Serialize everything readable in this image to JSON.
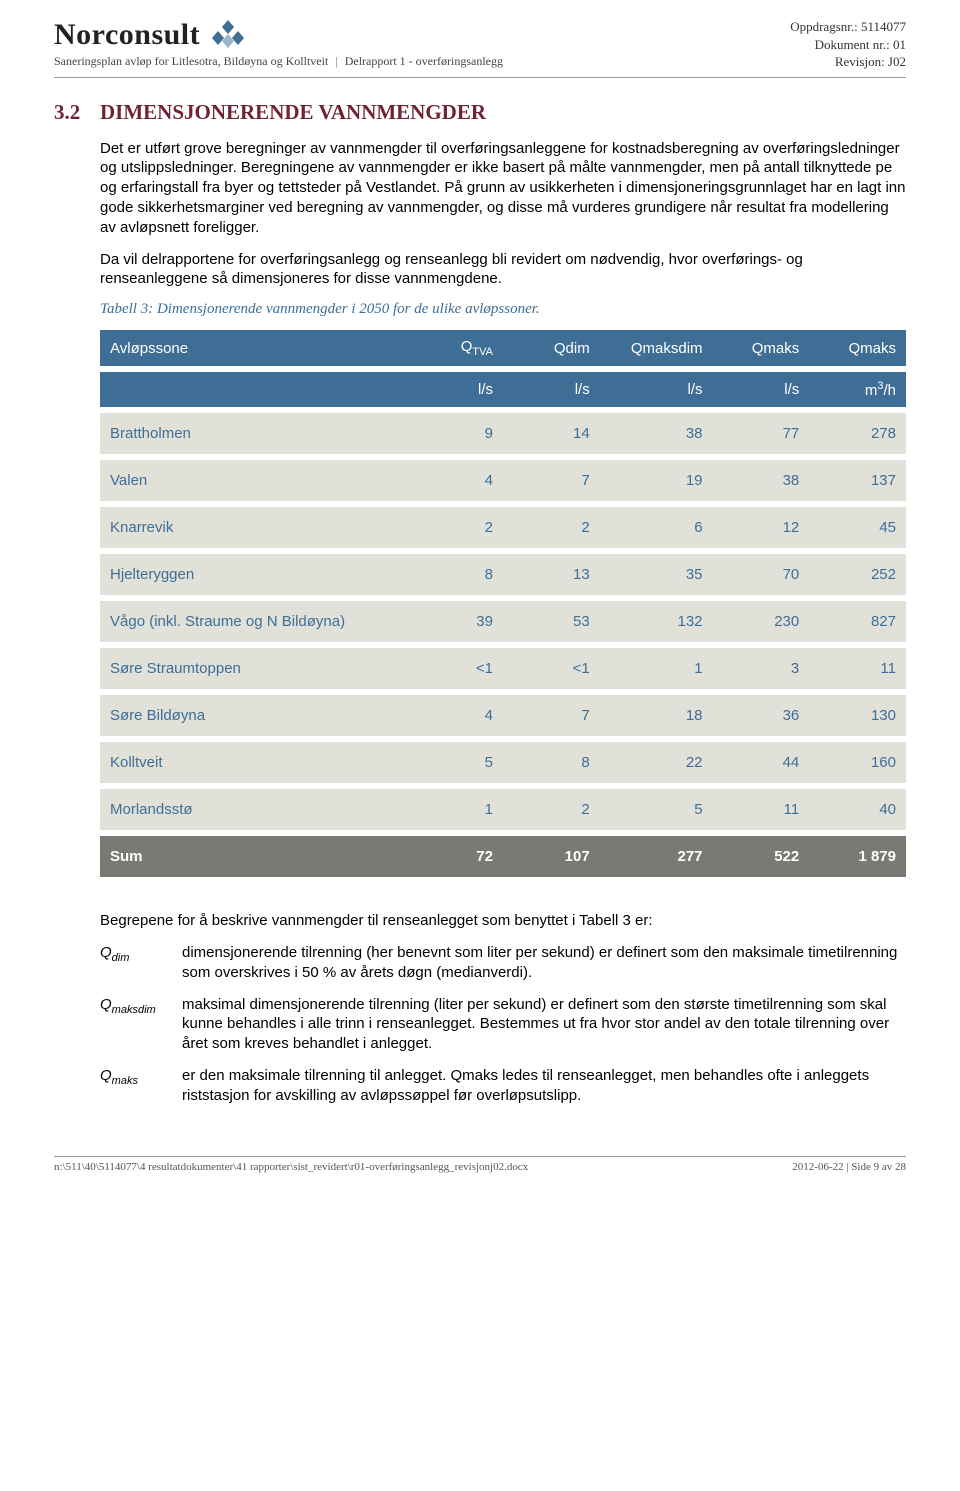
{
  "header": {
    "logo_text": "Norconsult",
    "logo_colors": {
      "diamond": "#3e6e96"
    },
    "subtitle_left": "Saneringsplan avløp for Litlesotra, Bildøyna og Kolltveit",
    "subtitle_right": "Delrapport 1 - overføringsanlegg",
    "right_lines": {
      "oppdrag": "Oppdragsnr.: 5114077",
      "dokument": "Dokument nr.: 01",
      "revisjon": "Revisjon: J02"
    }
  },
  "section": {
    "number": "3.2",
    "title": "DIMENSJONERENDE VANNMENGDER",
    "para1": "Det er utført grove beregninger av vannmengder til overføringsanleggene for kostnadsberegning av overføringsledninger og utslippsledninger. Beregningene av vannmengder er ikke basert på målte vannmengder, men på antall tilknyttede pe og erfaringstall fra byer og tettsteder på Vestlandet. På grunn av usikkerheten i dimensjoneringsgrunnlaget har en lagt inn gode sikkerhetsmarginer ved beregning av vannmengder, og disse må vurderes grundigere når resultat fra modellering av avløpsnett foreligger.",
    "para2": "Da vil delrapportene for overføringsanlegg og renseanlegg bli revidert om nødvendig, hvor overførings- og renseanleggene så dimensjoneres for disse vannmengdene.",
    "caption": "Tabell 3: Dimensjonerende vannmengder i 2050 for de ulike avløpssoner."
  },
  "table": {
    "col_widths": [
      "38%",
      "12%",
      "12%",
      "14%",
      "12%",
      "12%"
    ],
    "header_top": {
      "c0": "Avløpssone",
      "c1_main": "Q",
      "c1_sub": "TVA",
      "c2": "Qdim",
      "c3": "Qmaksdim",
      "c4": "Qmaks",
      "c5": "Qmaks"
    },
    "header_units": {
      "c1": "l/s",
      "c2": "l/s",
      "c3": "l/s",
      "c4": "l/s",
      "c5_pre": "m",
      "c5_sup": "3",
      "c5_post": "/h"
    },
    "rows": [
      {
        "name": "Brattholmen",
        "v": [
          "9",
          "14",
          "38",
          "77",
          "278"
        ]
      },
      {
        "name": "Valen",
        "v": [
          "4",
          "7",
          "19",
          "38",
          "137"
        ]
      },
      {
        "name": "Knarrevik",
        "v": [
          "2",
          "2",
          "6",
          "12",
          "45"
        ]
      },
      {
        "name": "Hjelteryggen",
        "v": [
          "8",
          "13",
          "35",
          "70",
          "252"
        ]
      },
      {
        "name": "Vågo (inkl. Straume og N Bildøyna)",
        "v": [
          "39",
          "53",
          "132",
          "230",
          "827"
        ]
      },
      {
        "name": "Søre Straumtoppen",
        "v": [
          "<1",
          "<1",
          "1",
          "3",
          "11"
        ]
      },
      {
        "name": "Søre Bildøyna",
        "v": [
          "4",
          "7",
          "18",
          "36",
          "130"
        ]
      },
      {
        "name": "Kolltveit",
        "v": [
          "5",
          "8",
          "22",
          "44",
          "160"
        ]
      },
      {
        "name": "Morlandsstø",
        "v": [
          "1",
          "2",
          "5",
          "11",
          "40"
        ]
      }
    ],
    "sum": {
      "name": "Sum",
      "v": [
        "72",
        "107",
        "277",
        "522",
        "1 879"
      ]
    }
  },
  "after": {
    "intro": "Begrepene for å beskrive vannmengder til renseanlegget som benyttet i Tabell 3 er:",
    "defs": [
      {
        "term_main": "Q",
        "term_sub": "dim",
        "desc": "dimensjonerende tilrenning (her benevnt som liter per sekund) er definert som den maksimale timetilrenning som overskrives i 50 % av årets døgn (medianverdi)."
      },
      {
        "term_main": "Q",
        "term_sub": "maksdim",
        "desc": "maksimal dimensjonerende tilrenning (liter per sekund) er definert som den største timetilrenning som skal kunne behandles i alle trinn i renseanlegget. Bestemmes ut fra hvor stor andel av den totale tilrenning over året som kreves behandlet i anlegget."
      },
      {
        "term_main": "Q",
        "term_sub": "maks",
        "desc": "er den maksimale tilrenning til anlegget. Qmaks ledes til renseanlegget, men behandles ofte i anleggets riststasjon for avskilling av avløpssøppel før overløpsutslipp."
      }
    ]
  },
  "footer": {
    "left": "n:\\511\\40\\5114077\\4 resultatdokumenter\\41 rapporter\\sist_revidert\\r01-overføringsanlegg_revisjonj02.docx",
    "right": "2012-06-22 | Side 9 av 28"
  },
  "style": {
    "accent_blue": "#3e6e96",
    "accent_maroon": "#6f2334",
    "row_bg": "#e1e1da",
    "sum_bg": "#7a7a74"
  }
}
